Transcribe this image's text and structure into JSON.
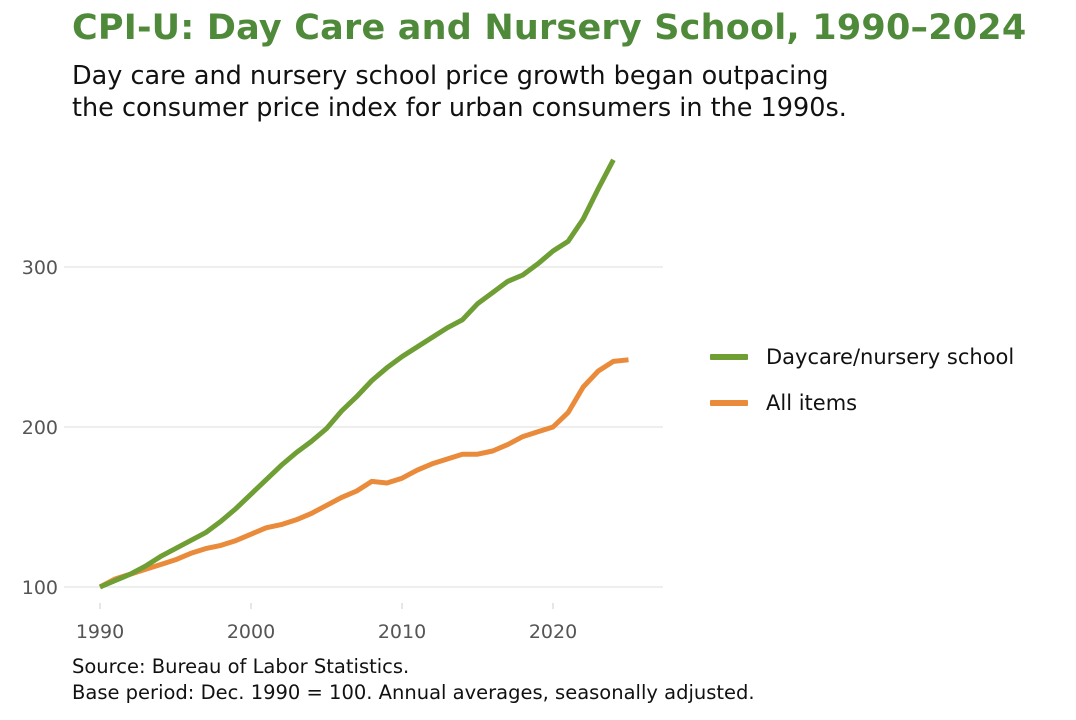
{
  "header": {
    "title": "CPI-U: Day Care and Nursery School, 1990–2024",
    "subtitle_line1": "Day care and nursery school price growth began outpacing",
    "subtitle_line2": "the consumer price index for urban consumers in the 1990s."
  },
  "footer": {
    "source_line1": "Source: Bureau of Labor Statistics.",
    "source_line2": "Base period: Dec. 1990 = 100. Annual averages, seasonally adjusted."
  },
  "chart_data": {
    "type": "line",
    "title": "CPI-U: Day Care and Nursery School, 1990–2024",
    "xlabel": "",
    "ylabel": "",
    "xlim": [
      1989,
      2027
    ],
    "ylim": [
      95,
      370
    ],
    "x_ticks": [
      1990,
      2000,
      2010,
      2020
    ],
    "y_ticks": [
      100,
      200,
      300
    ],
    "grid": "horizontal",
    "legend_position": "right",
    "series": [
      {
        "name": "Daycare/nursery school",
        "color": "#6e9e34",
        "x": [
          1990,
          1991,
          1992,
          1993,
          1994,
          1995,
          1996,
          1997,
          1998,
          1999,
          2000,
          2001,
          2002,
          2003,
          2004,
          2005,
          2006,
          2007,
          2008,
          2009,
          2010,
          2011,
          2012,
          2013,
          2014,
          2015,
          2016,
          2017,
          2018,
          2019,
          2020,
          2021,
          2022,
          2023,
          2024
        ],
        "y": [
          100,
          104,
          108,
          113,
          119,
          124,
          129,
          134,
          141,
          149,
          158,
          167,
          176,
          184,
          191,
          199,
          210,
          219,
          229,
          237,
          244,
          250,
          256,
          262,
          267,
          277,
          284,
          291,
          295,
          302,
          310,
          316,
          330,
          349,
          367
        ]
      },
      {
        "name": "All items",
        "color": "#e98b3a",
        "x": [
          1990,
          1991,
          1992,
          1993,
          1994,
          1995,
          1996,
          1997,
          1998,
          1999,
          2000,
          2001,
          2002,
          2003,
          2004,
          2005,
          2006,
          2007,
          2008,
          2009,
          2010,
          2011,
          2012,
          2013,
          2014,
          2015,
          2016,
          2017,
          2018,
          2019,
          2020,
          2021,
          2022,
          2023,
          2024,
          2025
        ],
        "y": [
          100,
          105,
          108,
          111,
          114,
          117,
          121,
          124,
          126,
          129,
          133,
          137,
          139,
          142,
          146,
          151,
          156,
          160,
          166,
          165,
          168,
          173,
          177,
          180,
          183,
          183,
          185,
          189,
          194,
          197,
          200,
          209,
          225,
          235,
          241,
          242
        ]
      }
    ]
  }
}
